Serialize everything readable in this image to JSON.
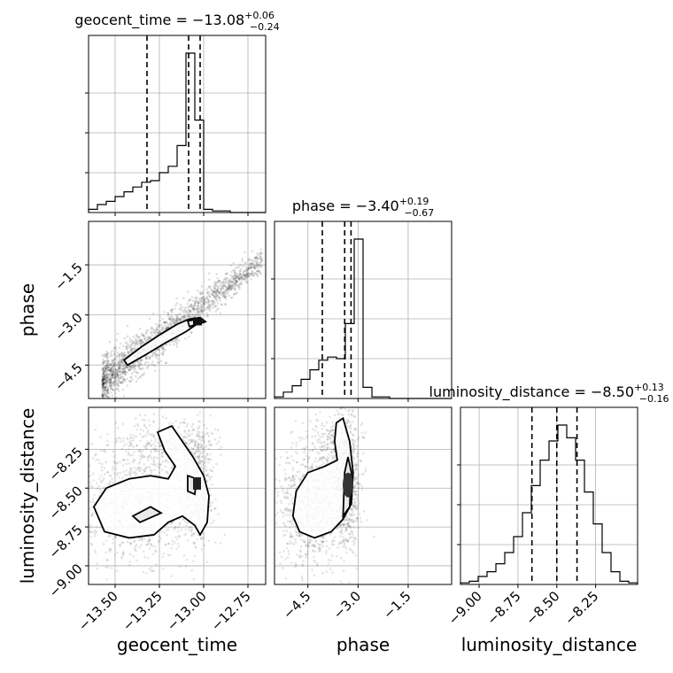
{
  "chart_data": {
    "type": "corner",
    "parameters": [
      "geocent_time",
      "phase",
      "luminosity_distance"
    ],
    "grid": true,
    "titles": [
      {
        "param": "geocent_time",
        "median": "−13.08",
        "plus": "+0.06",
        "minus": "−0.24"
      },
      {
        "param": "phase",
        "median": "−3.40",
        "plus": "+0.19",
        "minus": "−0.67"
      },
      {
        "param": "luminosity_distance",
        "median": "−8.50",
        "plus": "+0.13",
        "minus": "−0.16"
      }
    ],
    "axis_ranges": {
      "geocent_time": [
        -13.65,
        -12.65
      ],
      "phase": [
        -5.5,
        -0.2
      ],
      "luminosity_distance": [
        -9.12,
        -7.98
      ]
    },
    "ticks": {
      "geocent_time": [
        {
          "v": -13.5,
          "label": "−13.50"
        },
        {
          "v": -13.25,
          "label": "−13.25"
        },
        {
          "v": -13.0,
          "label": "−13.00"
        },
        {
          "v": -12.75,
          "label": "−12.75"
        }
      ],
      "phase": [
        {
          "v": -4.5,
          "label": "−4.5"
        },
        {
          "v": -3.0,
          "label": "−3.0"
        },
        {
          "v": -1.5,
          "label": "−1.5"
        }
      ],
      "luminosity_distance": [
        {
          "v": -9.0,
          "label": "−9.00"
        },
        {
          "v": -8.75,
          "label": "−8.75"
        },
        {
          "v": -8.5,
          "label": "−8.50"
        },
        {
          "v": -8.25,
          "label": "−8.25"
        }
      ]
    },
    "histograms": [
      {
        "param": "geocent_time",
        "edges": [
          -13.65,
          -13.6,
          -13.55,
          -13.5,
          -13.45,
          -13.4,
          -13.35,
          -13.3,
          -13.25,
          -13.2,
          -13.15,
          -13.1,
          -13.05,
          -13.0,
          -12.95,
          -12.9,
          -12.85,
          -12.8,
          -12.75,
          -12.7,
          -12.65
        ],
        "counts": [
          0.02,
          0.05,
          0.07,
          0.1,
          0.13,
          0.16,
          0.19,
          0.2,
          0.25,
          0.29,
          0.42,
          1.0,
          0.58,
          0.02,
          0.01,
          0.01,
          0,
          0,
          0,
          0
        ],
        "quantiles": [
          -13.32,
          -13.085,
          -13.02
        ]
      },
      {
        "param": "phase",
        "edges": [
          -5.5,
          -5.235,
          -4.97,
          -4.705,
          -4.44,
          -4.175,
          -3.91,
          -3.645,
          -3.38,
          -3.115,
          -2.85,
          -2.585,
          -2.32,
          -2.055,
          -1.79,
          -1.525,
          -1.26,
          -0.995,
          -0.73,
          -0.465,
          -0.2
        ],
        "counts": [
          0.01,
          0.04,
          0.08,
          0.12,
          0.18,
          0.24,
          0.26,
          0.25,
          0.47,
          1.0,
          0.07,
          0.01,
          0.01,
          0,
          0,
          0,
          0,
          0,
          0,
          0
        ],
        "quantiles": [
          -4.07,
          -3.4,
          -3.21
        ]
      },
      {
        "param": "luminosity_distance",
        "edges": [
          -9.12,
          -9.063,
          -9.006,
          -8.949,
          -8.892,
          -8.835,
          -8.778,
          -8.721,
          -8.664,
          -8.607,
          -8.55,
          -8.493,
          -8.436,
          -8.379,
          -8.322,
          -8.265,
          -8.208,
          -8.151,
          -8.094,
          -8.037,
          -7.98
        ],
        "counts": [
          0.01,
          0.02,
          0.05,
          0.08,
          0.13,
          0.2,
          0.3,
          0.45,
          0.62,
          0.78,
          0.9,
          1.0,
          0.92,
          0.78,
          0.58,
          0.38,
          0.2,
          0.08,
          0.02,
          0.01
        ],
        "quantiles": [
          -8.66,
          -8.5,
          -8.37
        ]
      }
    ],
    "scatter_2d": [
      {
        "x": "geocent_time",
        "y": "phase",
        "description_points": [
          {
            "x": -13.5,
            "y": -4.6
          },
          {
            "x": -13.4,
            "y": -4.3
          },
          {
            "x": -13.3,
            "y": -4.0
          },
          {
            "x": -13.2,
            "y": -3.8
          },
          {
            "x": -13.1,
            "y": -3.45
          },
          {
            "x": -13.05,
            "y": -3.3
          },
          {
            "x": -13.0,
            "y": -3.2
          },
          {
            "x": -12.9,
            "y": -2.7
          },
          {
            "x": -12.8,
            "y": -2.2
          },
          {
            "x": -12.7,
            "y": -1.4
          }
        ],
        "trend": {
          "slope": 4.0,
          "intercept": 49.3,
          "x_range": [
            -13.65,
            -12.67
          ],
          "spread": 0.18
        },
        "contours": [
          [
            [
              -13.43,
              -4.5
            ],
            [
              -13.33,
              -4.2
            ],
            [
              -13.22,
              -3.85
            ],
            [
              -13.1,
              -3.5
            ],
            [
              -13.04,
              -3.28
            ],
            [
              -12.99,
              -3.2
            ],
            [
              -13.02,
              -3.08
            ],
            [
              -13.08,
              -3.12
            ],
            [
              -13.15,
              -3.28
            ],
            [
              -13.25,
              -3.6
            ],
            [
              -13.35,
              -3.95
            ],
            [
              -13.45,
              -4.35
            ]
          ],
          [
            [
              -13.08,
              -3.35
            ],
            [
              -13.04,
              -3.28
            ],
            [
              -13.0,
              -3.22
            ],
            [
              -13.03,
              -3.12
            ],
            [
              -13.09,
              -3.18
            ]
          ]
        ]
      },
      {
        "x": "geocent_time",
        "y": "luminosity_distance",
        "contours": [
          [
            [
              -13.56,
              -8.78
            ],
            [
              -13.42,
              -8.82
            ],
            [
              -13.28,
              -8.8
            ],
            [
              -13.2,
              -8.72
            ],
            [
              -13.12,
              -8.68
            ],
            [
              -13.05,
              -8.74
            ],
            [
              -13.02,
              -8.8
            ],
            [
              -12.98,
              -8.72
            ],
            [
              -12.97,
              -8.55
            ],
            [
              -13.0,
              -8.42
            ],
            [
              -13.06,
              -8.3
            ],
            [
              -13.12,
              -8.2
            ],
            [
              -13.18,
              -8.1
            ],
            [
              -13.26,
              -8.14
            ],
            [
              -13.22,
              -8.26
            ],
            [
              -13.16,
              -8.36
            ],
            [
              -13.2,
              -8.44
            ],
            [
              -13.3,
              -8.42
            ],
            [
              -13.42,
              -8.44
            ],
            [
              -13.55,
              -8.5
            ],
            [
              -13.62,
              -8.62
            ]
          ],
          [
            [
              -13.4,
              -8.68
            ],
            [
              -13.3,
              -8.62
            ],
            [
              -13.24,
              -8.66
            ],
            [
              -13.36,
              -8.72
            ]
          ],
          [
            [
              -13.09,
              -8.42
            ],
            [
              -13.04,
              -8.44
            ],
            [
              -13.05,
              -8.54
            ],
            [
              -13.09,
              -8.52
            ]
          ]
        ],
        "clouds": [
          {
            "cx": -13.38,
            "cy": -8.6,
            "sx": 0.17,
            "sy": 0.2,
            "n": 900
          },
          {
            "cx": -13.05,
            "cy": -8.48,
            "sx": 0.05,
            "sy": 0.2,
            "n": 500
          },
          {
            "cx": -13.2,
            "cy": -8.22,
            "sx": 0.12,
            "sy": 0.08,
            "n": 250
          }
        ]
      },
      {
        "x": "phase",
        "y": "luminosity_distance",
        "contours": [
          [
            [
              -4.75,
              -8.78
            ],
            [
              -4.3,
              -8.82
            ],
            [
              -3.8,
              -8.78
            ],
            [
              -3.45,
              -8.7
            ],
            [
              -3.2,
              -8.6
            ],
            [
              -3.15,
              -8.4
            ],
            [
              -3.25,
              -8.2
            ],
            [
              -3.45,
              -8.05
            ],
            [
              -3.65,
              -8.08
            ],
            [
              -3.7,
              -8.2
            ],
            [
              -3.62,
              -8.32
            ],
            [
              -4.0,
              -8.36
            ],
            [
              -4.5,
              -8.4
            ],
            [
              -4.85,
              -8.52
            ],
            [
              -4.95,
              -8.68
            ]
          ],
          [
            [
              -3.45,
              -8.68
            ],
            [
              -3.25,
              -8.62
            ],
            [
              -3.2,
              -8.4
            ],
            [
              -3.3,
              -8.3
            ],
            [
              -3.4,
              -8.4
            ]
          ]
        ],
        "clouds": [
          {
            "cx": -4.4,
            "cy": -8.62,
            "sx": 0.55,
            "sy": 0.2,
            "n": 800
          },
          {
            "cx": -3.35,
            "cy": -8.45,
            "sx": 0.2,
            "sy": 0.22,
            "n": 700
          },
          {
            "cx": -3.8,
            "cy": -8.2,
            "sx": 0.35,
            "sy": 0.1,
            "n": 200
          }
        ]
      }
    ]
  }
}
